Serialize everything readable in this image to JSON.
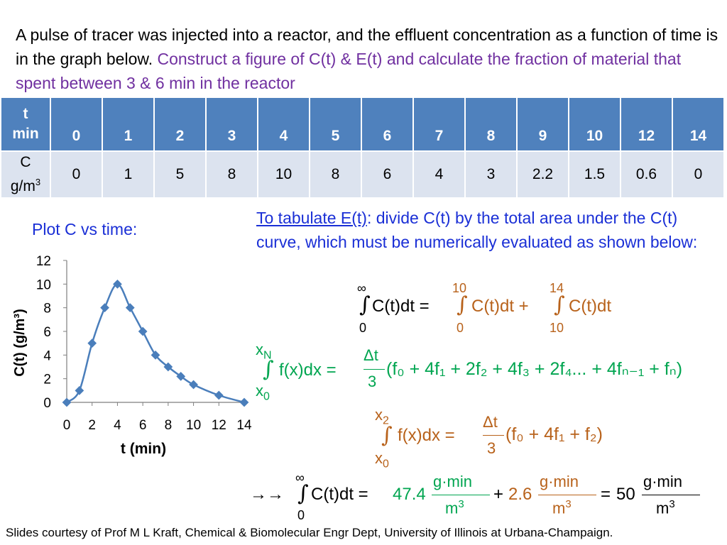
{
  "title": {
    "black": "A pulse of tracer was injected into a reactor, and the effluent concentration as a function of time is in the graph below.",
    "purple": "Construct a figure of C(t) & E(t) and calculate the fraction of material that spent between 3 & 6 min in the reactor"
  },
  "table": {
    "t_header_line1": "t",
    "t_header_line2": "min",
    "c_header_line1": "C",
    "c_header_line2": "g/m",
    "c_header_sup": "3",
    "t_values": [
      "0",
      "1",
      "2",
      "3",
      "4",
      "5",
      "6",
      "7",
      "8",
      "9",
      "10",
      "12",
      "14"
    ],
    "c_values": [
      "0",
      "1",
      "5",
      "8",
      "10",
      "8",
      "6",
      "4",
      "3",
      "2.2",
      "1.5",
      "0.6",
      "0"
    ]
  },
  "plot_label": "Plot C vs time:",
  "tabulate": {
    "underlined": "To tabulate E(t)",
    "rest": ": divide C(t) by the total area under the C(t) curve, which must be numerically evaluated as shown below:"
  },
  "eq1": {
    "lim_inf": "∞",
    "lim_zero_a": "0",
    "lim_ten_a": "10",
    "lim_zero_b": "0",
    "lim_fourteen": "14",
    "lim_ten_b": "10",
    "lhs": "C(t)dt =",
    "mid": "C(t)dt +",
    "rhs": "C(t)dt"
  },
  "eq2": {
    "upper": "x",
    "upper_sub": "N",
    "lower": "x",
    "lower_sub": "0",
    "body": "f(x)dx =",
    "num": "Δt",
    "den": "3",
    "series": "(f₀ + 4f₁ + 2f₂ + 4f₃ + 2f₄... + 4fₙ₋₁ + fₙ)"
  },
  "eq3": {
    "upper": "x",
    "upper_sub": "2",
    "lower": "x",
    "lower_sub": "0",
    "body": "f(x)dx =",
    "num": "Δt",
    "den": "3",
    "series": "(f₀ + 4f₁ + f₂)"
  },
  "eq4": {
    "arrow": "→→",
    "lim_inf": "∞",
    "lim_zero": "0",
    "lhs": "C(t)dt =",
    "v1": "47.4",
    "plus": "+",
    "v2": "2.6",
    "eq": "=",
    "v3": "50",
    "unit_num": "g·min",
    "unit_den": "m",
    "unit_sup": "3"
  },
  "credit": "Slides courtesy of Prof M L Kraft, Chemical & Biomolecular Engr Dept, University of Illinois at Urbana-Champaign.",
  "chart_data": {
    "type": "line",
    "title": "",
    "xlabel": "t (min)",
    "ylabel": "C(t) (g/m³)",
    "x": [
      0,
      1,
      2,
      3,
      4,
      5,
      6,
      7,
      8,
      9,
      10,
      12,
      14
    ],
    "y": [
      0,
      1,
      5,
      8,
      10,
      8,
      6,
      4,
      3,
      2.2,
      1.5,
      0.6,
      0
    ],
    "xlim": [
      0,
      14
    ],
    "ylim": [
      0,
      12
    ],
    "xticks": [
      0,
      2,
      4,
      6,
      8,
      10,
      12,
      14
    ],
    "yticks": [
      0,
      2,
      4,
      6,
      8,
      10,
      12
    ],
    "color": "#4a7ebb",
    "grid": false,
    "smooth": true
  }
}
